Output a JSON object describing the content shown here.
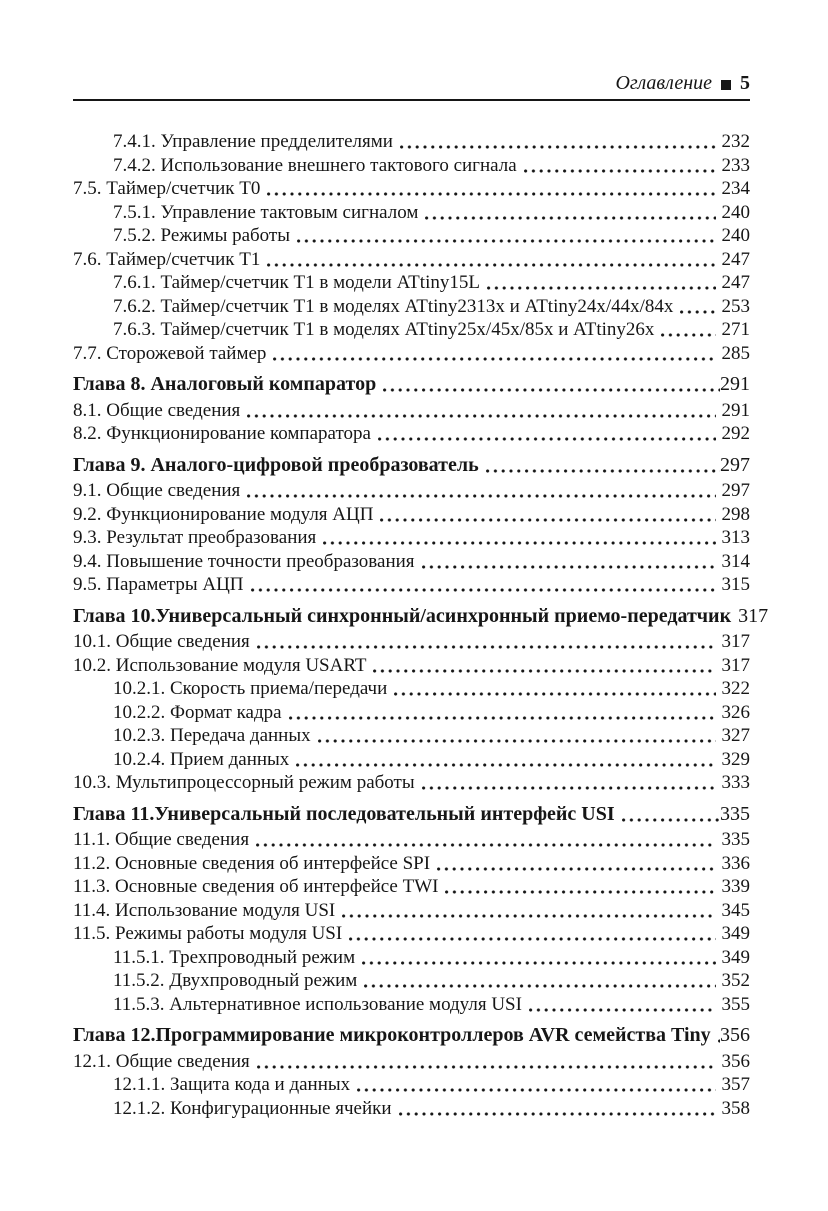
{
  "header": {
    "title": "Оглавление",
    "page_number": "5"
  },
  "toc": {
    "entries": [
      {
        "level": "subsection",
        "label": "7.4.1. Управление предделителями",
        "page": "232"
      },
      {
        "level": "subsection",
        "label": "7.4.2. Использование внешнего тактового сигнала",
        "page": "233"
      },
      {
        "level": "section",
        "label": "7.5. Таймер/счетчик Т0",
        "page": "234"
      },
      {
        "level": "subsection",
        "label": "7.5.1. Управление тактовым сигналом",
        "page": "240"
      },
      {
        "level": "subsection",
        "label": "7.5.2. Режимы работы",
        "page": "240"
      },
      {
        "level": "section",
        "label": "7.6. Таймер/счетчик Т1",
        "page": "247"
      },
      {
        "level": "subsection",
        "label": "7.6.1. Таймер/счетчик Т1 в модели ATtiny15L",
        "page": "247"
      },
      {
        "level": "subsection",
        "label": "7.6.2. Таймер/счетчик Т1 в моделях ATtiny2313x и ATtiny24x/44x/84x",
        "page": "253"
      },
      {
        "level": "subsection",
        "label": "7.6.3. Таймер/счетчик Т1 в моделях ATtiny25x/45x/85x и ATtiny26x",
        "page": "271"
      },
      {
        "level": "section",
        "label": "7.7. Сторожевой таймер",
        "page": "285"
      },
      {
        "level": "chapter",
        "label": "Глава 8. Аналоговый компаратор",
        "page": "291"
      },
      {
        "level": "section",
        "label": "8.1. Общие сведения",
        "page": "291"
      },
      {
        "level": "section",
        "label": "8.2. Функционирование компаратора",
        "page": "292"
      },
      {
        "level": "chapter",
        "label": "Глава 9. Аналого-цифровой преобразователь",
        "page": "297"
      },
      {
        "level": "section",
        "label": "9.1. Общие сведения",
        "page": "297"
      },
      {
        "level": "section",
        "label": "9.2. Функционирование модуля АЦП",
        "page": "298"
      },
      {
        "level": "section",
        "label": "9.3. Результат преобразования",
        "page": "313"
      },
      {
        "level": "section",
        "label": "9.4. Повышение точности преобразования",
        "page": "314"
      },
      {
        "level": "section",
        "label": "9.5. Параметры АЦП",
        "page": "315"
      },
      {
        "level": "chapter",
        "label": "Глава 10.Универсальный синхронный/асинхронный приемо-передатчик",
        "page": "317"
      },
      {
        "level": "section",
        "label": "10.1. Общие сведения",
        "page": "317"
      },
      {
        "level": "section",
        "label": "10.2. Использование модуля USART",
        "page": "317"
      },
      {
        "level": "subsection",
        "label": "10.2.1. Скорость приема/передачи",
        "page": "322"
      },
      {
        "level": "subsection",
        "label": "10.2.2. Формат кадра",
        "page": "326"
      },
      {
        "level": "subsection",
        "label": "10.2.3. Передача данных",
        "page": "327"
      },
      {
        "level": "subsection",
        "label": "10.2.4. Прием данных",
        "page": "329"
      },
      {
        "level": "section",
        "label": "10.3. Мультипроцессорный режим работы",
        "page": "333"
      },
      {
        "level": "chapter",
        "label": "Глава 11.Универсальный последовательный интерфейс USI",
        "page": "335"
      },
      {
        "level": "section",
        "label": "11.1. Общие сведения",
        "page": "335"
      },
      {
        "level": "section",
        "label": "11.2. Основные сведения об интерфейсе SPI",
        "page": "336"
      },
      {
        "level": "section",
        "label": "11.3. Основные сведения об интерфейсе TWI",
        "page": "339"
      },
      {
        "level": "section",
        "label": "11.4. Использование модуля USI",
        "page": "345"
      },
      {
        "level": "section",
        "label": "11.5. Режимы работы модуля USI",
        "page": "349"
      },
      {
        "level": "subsection",
        "label": "11.5.1. Трехпроводный режим",
        "page": "349"
      },
      {
        "level": "subsection",
        "label": "11.5.2. Двухпроводный режим",
        "page": "352"
      },
      {
        "level": "subsection",
        "label": "11.5.3. Альтернативное использование модуля USI",
        "page": "355"
      },
      {
        "level": "chapter",
        "label": "Глава 12.Программирование микроконтроллеров AVR семейства Tiny",
        "page": "356"
      },
      {
        "level": "section",
        "label": "12.1. Общие сведения",
        "page": "356"
      },
      {
        "level": "subsection",
        "label": "12.1.1. Защита кода и данных",
        "page": "357"
      },
      {
        "level": "subsection",
        "label": "12.1.2. Конфигурационные ячейки",
        "page": "358"
      }
    ]
  }
}
